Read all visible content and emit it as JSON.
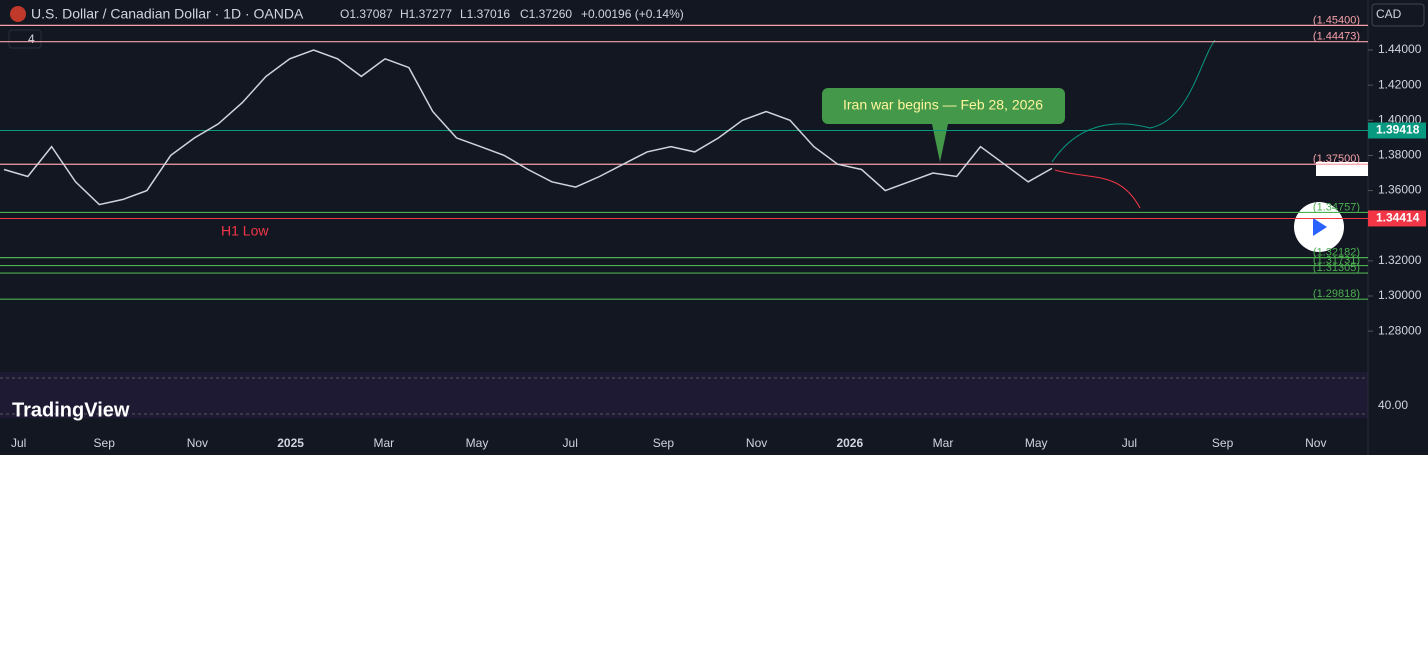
{
  "header": {
    "symbol": "U.S. Dollar / Canadian Dollar · 1D · OANDA",
    "open": "O1.37087",
    "high": "H1.37277",
    "low": "L1.37016",
    "close": "C1.37260",
    "change": "+0.00196 (+0.14%)",
    "indicator_count": "4",
    "currency": "CAD"
  },
  "price_axis": {
    "ylim": [
      1.26,
      1.46
    ],
    "yticks": [
      {
        "value": 1.44,
        "label": "1.44000"
      },
      {
        "value": 1.42,
        "label": "1.42000"
      },
      {
        "value": 1.4,
        "label": "1.40000"
      },
      {
        "value": 1.38,
        "label": "1.38000"
      },
      {
        "value": 1.36,
        "label": "1.36000"
      },
      {
        "value": 1.32,
        "label": "1.32000"
      },
      {
        "value": 1.3,
        "label": "1.30000"
      },
      {
        "value": 1.28,
        "label": "1.28000"
      }
    ],
    "rsi_tick": "40.00"
  },
  "time_axis": [
    "Jul",
    "Sep",
    "Nov",
    "2025",
    "Mar",
    "May",
    "Jul",
    "Sep",
    "Nov",
    "2026",
    "Mar",
    "May",
    "Jul",
    "Sep",
    "Nov"
  ],
  "badges": [
    {
      "value": 1.39418,
      "label": "1.39418",
      "color": "#089981"
    },
    {
      "value": 1.34414,
      "label": "1.34414",
      "color": "#f23645"
    }
  ],
  "levels": [
    {
      "value": 1.454,
      "label": "(1.45400)",
      "color": "#f7a1a8"
    },
    {
      "value": 1.44473,
      "label": "(1.44473)",
      "color": "#f7a1a8"
    },
    {
      "value": 1.375,
      "label": "(1.37500)",
      "color": "#f7a1a8"
    },
    {
      "value": 1.34757,
      "label": "(1.34757)",
      "color": "#4caf50"
    },
    {
      "value": 1.32182,
      "label": "(1.32182)",
      "color": "#4caf50"
    },
    {
      "value": 1.31731,
      "label": "(1.31731)",
      "color": "#4caf50"
    },
    {
      "value": 1.31305,
      "label": "(1.31305)",
      "color": "#4caf50"
    },
    {
      "value": 1.29818,
      "label": "(1.29818)",
      "color": "#4caf50"
    }
  ],
  "price": {
    "color": "#d1d4dc",
    "values": [
      1.372,
      1.368,
      1.385,
      1.365,
      1.352,
      1.355,
      1.36,
      1.38,
      1.39,
      1.398,
      1.41,
      1.425,
      1.435,
      1.44,
      1.435,
      1.425,
      1.435,
      1.43,
      1.405,
      1.39,
      1.385,
      1.38,
      1.372,
      1.365,
      1.362,
      1.368,
      1.375,
      1.382,
      1.385,
      1.382,
      1.39,
      1.4,
      1.405,
      1.4,
      1.385,
      1.375,
      1.372,
      1.36,
      1.365,
      1.37,
      1.368,
      1.385,
      1.375,
      1.365,
      1.3726
    ]
  },
  "annotations": {
    "event": "Iran war begins — Feb 28, 2026",
    "h1_low": "H1 Low",
    "brand": "TradingView"
  }
}
